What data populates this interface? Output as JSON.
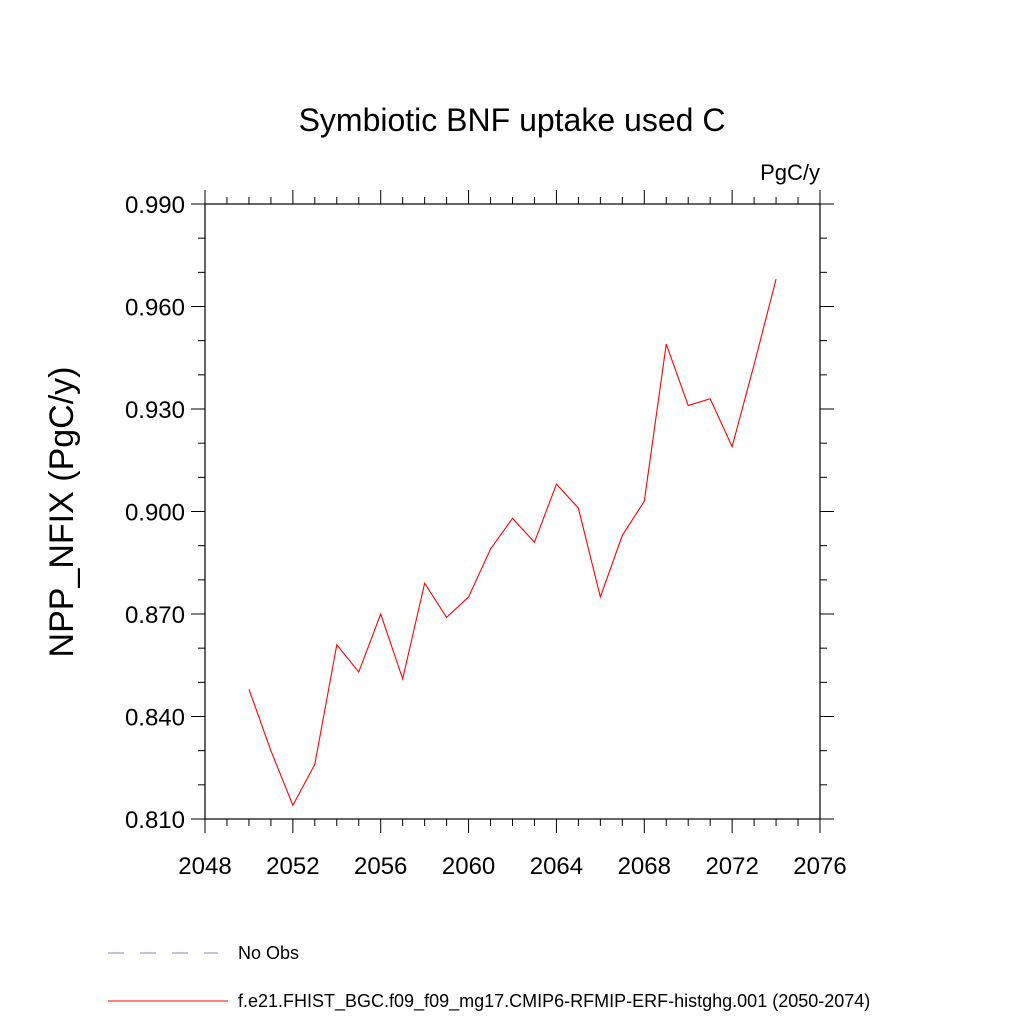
{
  "chart_data": {
    "type": "line",
    "title": "Symbiotic BNF uptake used C",
    "units_label": "PgC/y",
    "ylabel": "NPP_NFIX  (PgC/y)",
    "xlabel": "",
    "xlim": [
      2048,
      2076
    ],
    "ylim": [
      0.81,
      0.99
    ],
    "x_ticks": [
      2048,
      2052,
      2056,
      2060,
      2064,
      2068,
      2072,
      2076
    ],
    "y_ticks": [
      "0.810",
      "0.840",
      "0.870",
      "0.900",
      "0.930",
      "0.960",
      "0.990"
    ],
    "y_tick_values": [
      0.81,
      0.84,
      0.87,
      0.9,
      0.93,
      0.96,
      0.99
    ],
    "grid": false,
    "legend_position": "bottom-left",
    "series": [
      {
        "name": "f.e21.FHIST_BGC.f09_f09_mg17.CMIP6-RFMIP-ERF-histghg.001 (2050-2074)",
        "color": "#ff0000",
        "style": "solid",
        "x": [
          2050,
          2051,
          2052,
          2053,
          2054,
          2055,
          2056,
          2057,
          2058,
          2059,
          2060,
          2061,
          2062,
          2063,
          2064,
          2065,
          2066,
          2067,
          2068,
          2069,
          2070,
          2071,
          2072,
          2073,
          2074
        ],
        "y": [
          0.848,
          0.83,
          0.814,
          0.826,
          0.861,
          0.853,
          0.87,
          0.851,
          0.879,
          0.869,
          0.875,
          0.889,
          0.898,
          0.891,
          0.908,
          0.901,
          0.875,
          0.893,
          0.903,
          0.949,
          0.931,
          0.933,
          0.919,
          0.943,
          0.968
        ]
      },
      {
        "name": "No Obs",
        "color": "#8080c0",
        "style": "dashed",
        "x": [],
        "y": []
      }
    ]
  }
}
